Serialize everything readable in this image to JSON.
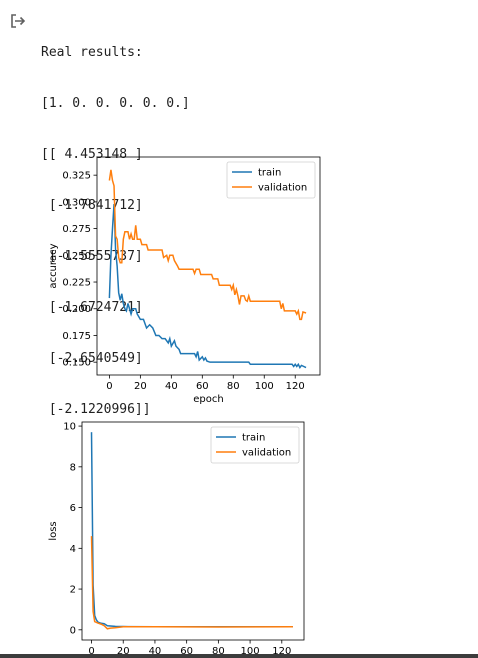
{
  "output": {
    "icon": "output-redirect-icon",
    "lines": [
      "Real results:",
      "[1. 0. 0. 0. 0. 0.]",
      "[[ 4.453148 ]",
      " [-1.7841712]",
      " [-1.5555737]",
      " [-1.6724721]",
      " [-2.6540549]",
      " [-2.1220996]]"
    ]
  },
  "colors": {
    "train": "#1f77b4",
    "validation": "#ff7f0e"
  },
  "chart_data": [
    {
      "type": "line",
      "title": "",
      "xlabel": "epoch",
      "ylabel": "accuracy",
      "xlim": [
        -8,
        136
      ],
      "ylim": [
        0.138,
        0.342
      ],
      "xticks": [
        "0",
        "20",
        "40",
        "60",
        "80",
        "100",
        "120"
      ],
      "yticks": [
        "0.150",
        "0.175",
        "0.200",
        "0.225",
        "0.250",
        "0.275",
        "0.300",
        "0.325"
      ],
      "legend_position": "top-right",
      "grid": false,
      "series": [
        {
          "name": "train",
          "points": [
            [
              0,
              0.21
            ],
            [
              1,
              0.25
            ],
            [
              2,
              0.275
            ],
            [
              3,
              0.298
            ],
            [
              4,
              0.255
            ],
            [
              5,
              0.24
            ],
            [
              6,
              0.215
            ],
            [
              7,
              0.208
            ],
            [
              8,
              0.214
            ],
            [
              9,
              0.205
            ],
            [
              10,
              0.2
            ],
            [
              11,
              0.198
            ],
            [
              12,
              0.205
            ],
            [
              13,
              0.2
            ],
            [
              14,
              0.195
            ],
            [
              15,
              0.2
            ],
            [
              17,
              0.2
            ],
            [
              18,
              0.195
            ],
            [
              20,
              0.19
            ],
            [
              22,
              0.19
            ],
            [
              24,
              0.182
            ],
            [
              26,
              0.185
            ],
            [
              28,
              0.182
            ],
            [
              30,
              0.175
            ],
            [
              32,
              0.175
            ],
            [
              34,
              0.172
            ],
            [
              36,
              0.172
            ],
            [
              38,
              0.168
            ],
            [
              39,
              0.172
            ],
            [
              40,
              0.165
            ],
            [
              42,
              0.17
            ],
            [
              43,
              0.165
            ],
            [
              45,
              0.162
            ],
            [
              46,
              0.158
            ],
            [
              48,
              0.158
            ],
            [
              55,
              0.158
            ],
            [
              56,
              0.155
            ],
            [
              57,
              0.16
            ],
            [
              58,
              0.152
            ],
            [
              60,
              0.155
            ],
            [
              61,
              0.152
            ],
            [
              62,
              0.154
            ],
            [
              63,
              0.151
            ],
            [
              65,
              0.15
            ],
            [
              75,
              0.15
            ],
            [
              90,
              0.15
            ],
            [
              91,
              0.148
            ],
            [
              118,
              0.148
            ],
            [
              119,
              0.146
            ],
            [
              120,
              0.148
            ],
            [
              121,
              0.146
            ],
            [
              122,
              0.148
            ],
            [
              123,
              0.145
            ],
            [
              124,
              0.147
            ],
            [
              127,
              0.145
            ]
          ]
        },
        {
          "name": "validation",
          "points": [
            [
              0,
              0.32
            ],
            [
              1,
              0.33
            ],
            [
              2,
              0.32
            ],
            [
              3,
              0.315
            ],
            [
              4,
              0.268
            ],
            [
              5,
              0.265
            ],
            [
              6,
              0.248
            ],
            [
              7,
              0.243
            ],
            [
              8,
              0.243
            ],
            [
              9,
              0.265
            ],
            [
              10,
              0.272
            ],
            [
              12,
              0.272
            ],
            [
              13,
              0.265
            ],
            [
              14,
              0.27
            ],
            [
              15,
              0.265
            ],
            [
              16,
              0.265
            ],
            [
              17,
              0.278
            ],
            [
              18,
              0.265
            ],
            [
              20,
              0.265
            ],
            [
              21,
              0.26
            ],
            [
              24,
              0.26
            ],
            [
              25,
              0.255
            ],
            [
              34,
              0.255
            ],
            [
              35,
              0.248
            ],
            [
              37,
              0.25
            ],
            [
              38,
              0.245
            ],
            [
              39,
              0.25
            ],
            [
              41,
              0.25
            ],
            [
              42,
              0.245
            ],
            [
              44,
              0.24
            ],
            [
              45,
              0.237
            ],
            [
              54,
              0.237
            ],
            [
              55,
              0.233
            ],
            [
              56,
              0.237
            ],
            [
              58,
              0.237
            ],
            [
              59,
              0.232
            ],
            [
              66,
              0.232
            ],
            [
              67,
              0.228
            ],
            [
              70,
              0.228
            ],
            [
              71,
              0.222
            ],
            [
              78,
              0.222
            ],
            [
              79,
              0.218
            ],
            [
              80,
              0.222
            ],
            [
              81,
              0.213
            ],
            [
              82,
              0.218
            ],
            [
              83,
              0.212
            ],
            [
              84,
              0.204
            ],
            [
              85,
              0.212
            ],
            [
              87,
              0.212
            ],
            [
              88,
              0.208
            ],
            [
              89,
              0.207
            ],
            [
              90,
              0.212
            ],
            [
              91,
              0.207
            ],
            [
              110,
              0.207
            ],
            [
              111,
              0.2
            ],
            [
              112,
              0.205
            ],
            [
              113,
              0.198
            ],
            [
              120,
              0.198
            ],
            [
              121,
              0.195
            ],
            [
              122,
              0.198
            ],
            [
              123,
              0.19
            ],
            [
              124,
              0.19
            ],
            [
              125,
              0.197
            ],
            [
              127,
              0.196
            ]
          ]
        }
      ]
    },
    {
      "type": "line",
      "title": "",
      "xlabel": "",
      "ylabel": "loss",
      "xlim": [
        -6,
        134
      ],
      "ylim": [
        -0.5,
        10.2
      ],
      "xticks": [
        "0",
        "20",
        "40",
        "60",
        "80",
        "100",
        "120"
      ],
      "yticks": [
        "0",
        "2",
        "4",
        "6",
        "8",
        "10"
      ],
      "legend_position": "top-right",
      "grid": false,
      "series": [
        {
          "name": "train",
          "points": [
            [
              0,
              9.7
            ],
            [
              1,
              2.2
            ],
            [
              2,
              0.7
            ],
            [
              3,
              0.5
            ],
            [
              4,
              0.38
            ],
            [
              6,
              0.32
            ],
            [
              8,
              0.3
            ],
            [
              10,
              0.2
            ],
            [
              15,
              0.17
            ],
            [
              20,
              0.16
            ],
            [
              40,
              0.15
            ],
            [
              80,
              0.15
            ],
            [
              127,
              0.15
            ]
          ]
        },
        {
          "name": "validation",
          "points": [
            [
              0,
              4.6
            ],
            [
              1,
              0.9
            ],
            [
              2,
              0.4
            ],
            [
              4,
              0.33
            ],
            [
              6,
              0.28
            ],
            [
              8,
              0.2
            ],
            [
              10,
              0.05
            ],
            [
              12,
              0.08
            ],
            [
              15,
              0.1
            ],
            [
              20,
              0.15
            ],
            [
              40,
              0.15
            ],
            [
              80,
              0.14
            ],
            [
              127,
              0.15
            ]
          ]
        }
      ]
    }
  ]
}
